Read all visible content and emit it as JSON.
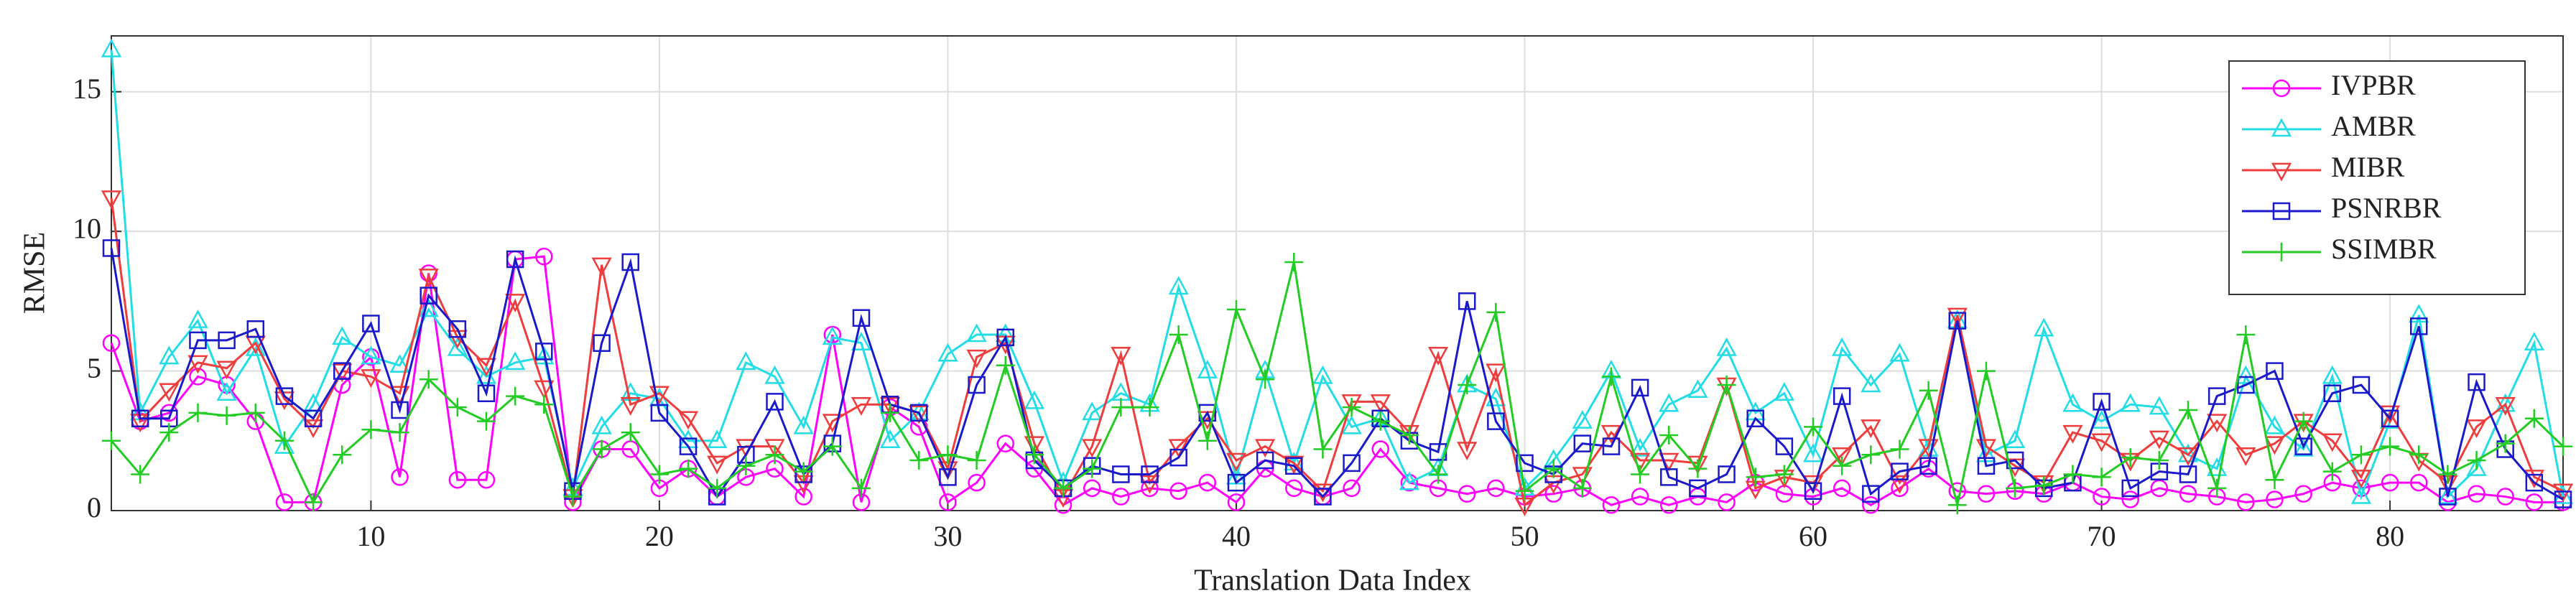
{
  "chart_data": {
    "type": "line",
    "x_label": "Translation Data Index",
    "y_label": "RMSE",
    "x": [
      1,
      2,
      3,
      4,
      5,
      6,
      7,
      8,
      9,
      10,
      11,
      12,
      13,
      14,
      15,
      16,
      17,
      18,
      19,
      20,
      21,
      22,
      23,
      24,
      25,
      26,
      27,
      28,
      29,
      30,
      31,
      32,
      33,
      34,
      35,
      36,
      37,
      38,
      39,
      40,
      41,
      42,
      43,
      44,
      45,
      46,
      47,
      48,
      49,
      50,
      51,
      52,
      53,
      54,
      55,
      56,
      57,
      58,
      59,
      60,
      61,
      62,
      63,
      64,
      65,
      66,
      67,
      68,
      69,
      70,
      71,
      72,
      73,
      74,
      75,
      76,
      77,
      78,
      79,
      80,
      81,
      82,
      83,
      84,
      85,
      86
    ],
    "xlim": [
      1,
      86
    ],
    "xticks": [
      10,
      20,
      30,
      40,
      50,
      60,
      70,
      80
    ],
    "ylim": [
      0,
      17
    ],
    "yticks": [
      0,
      5,
      10,
      15
    ],
    "grid": true,
    "legend": "upper right",
    "series": [
      {
        "name": "IVPBR",
        "color": "#ff00ff",
        "marker": "circle",
        "values": [
          6,
          3.2,
          3.5,
          4.8,
          4.5,
          3.2,
          0.3,
          0.3,
          4.5,
          5.5,
          1.2,
          8.5,
          1.1,
          1.1,
          9.0,
          9.1,
          0.3,
          2.2,
          2.2,
          0.8,
          1.5,
          0.5,
          1.2,
          1.5,
          0.5,
          6.3,
          0.3,
          3.7,
          3.0,
          0.3,
          1.0,
          2.4,
          1.5,
          0.2,
          0.8,
          0.5,
          0.8,
          0.7,
          1.0,
          0.3,
          1.5,
          0.8,
          0.5,
          0.8,
          2.2,
          1.0,
          0.8,
          0.6,
          0.8,
          0.5,
          0.6,
          0.8,
          0.2,
          0.5,
          0.2,
          0.5,
          0.3,
          1.0,
          0.6,
          0.5,
          0.8,
          0.2,
          0.8,
          1.5,
          0.7,
          0.6,
          0.7,
          0.6,
          1.0,
          0.5,
          0.4,
          0.8,
          0.6,
          0.5,
          0.3,
          0.4,
          0.6,
          1.0,
          0.8,
          1.0,
          1.0,
          0.3,
          0.6,
          0.5,
          0.3,
          0.3
        ]
      },
      {
        "name": "AMBR",
        "color": "#22dde6",
        "marker": "triangle-up",
        "values": [
          16.5,
          3.5,
          5.5,
          6.8,
          4.2,
          5.8,
          2.3,
          3.8,
          6.2,
          5.5,
          5.2,
          7.2,
          5.8,
          4.8,
          5.3,
          5.5,
          0.8,
          3.0,
          4.2,
          4.0,
          2.5,
          2.5,
          5.3,
          4.8,
          3.0,
          6.2,
          6.0,
          2.5,
          3.5,
          5.6,
          6.3,
          6.3,
          3.9,
          1.0,
          3.5,
          4.2,
          3.8,
          8.0,
          5.0,
          1.2,
          5.0,
          1.7,
          4.8,
          3.0,
          3.3,
          1.0,
          1.5,
          4.5,
          4.0,
          0.8,
          1.8,
          3.2,
          5.0,
          2.2,
          3.8,
          4.3,
          5.8,
          3.5,
          4.2,
          2.0,
          5.8,
          4.5,
          5.6,
          2.2,
          6.8,
          2.0,
          2.5,
          6.5,
          3.8,
          3.2,
          3.8,
          3.7,
          2.0,
          1.5,
          4.8,
          3.0,
          2.2,
          4.8,
          0.5,
          3.2,
          7.0,
          0.5,
          1.5,
          3.8,
          6.0,
          0.5
        ]
      },
      {
        "name": "MIBR",
        "color": "#f03c3c",
        "marker": "triangle-down",
        "values": [
          11.2,
          3.2,
          4.3,
          5.3,
          5.1,
          6.0,
          4.0,
          3.0,
          5.0,
          4.8,
          4.2,
          8.4,
          6.2,
          5.2,
          7.5,
          4.4,
          0.5,
          8.8,
          3.8,
          4.2,
          3.3,
          1.7,
          2.3,
          2.3,
          1.0,
          3.2,
          3.8,
          3.8,
          3.5,
          1.5,
          5.5,
          6.0,
          2.4,
          0.5,
          2.3,
          5.6,
          1.0,
          2.3,
          3.3,
          1.8,
          2.3,
          1.7,
          0.7,
          3.9,
          3.9,
          2.8,
          5.6,
          2.2,
          5.0,
          0.2,
          1.0,
          1.3,
          2.8,
          1.8,
          1.8,
          1.7,
          4.5,
          0.8,
          1.2,
          1.0,
          2.0,
          3.0,
          1.0,
          2.3,
          7.0,
          2.3,
          1.6,
          1.0,
          2.8,
          2.5,
          1.8,
          2.6,
          2.0,
          3.2,
          2.0,
          2.4,
          3.2,
          2.5,
          1.2,
          3.5,
          1.8,
          1.0,
          3.0,
          3.8,
          1.2,
          0.7
        ]
      },
      {
        "name": "PSNRBR",
        "color": "#1a1acc",
        "marker": "square",
        "values": [
          9.4,
          3.3,
          3.3,
          6.1,
          6.1,
          6.5,
          4.1,
          3.3,
          5.0,
          6.7,
          3.6,
          7.7,
          6.5,
          4.2,
          9.0,
          5.7,
          0.7,
          6.0,
          8.9,
          3.5,
          2.3,
          0.5,
          2.0,
          3.9,
          1.3,
          2.4,
          6.9,
          3.8,
          3.5,
          1.2,
          4.5,
          6.2,
          1.8,
          0.8,
          1.6,
          1.3,
          1.3,
          1.9,
          3.5,
          1.0,
          1.8,
          1.6,
          0.5,
          1.7,
          3.3,
          2.5,
          2.1,
          7.5,
          3.2,
          1.7,
          1.3,
          2.4,
          2.3,
          4.4,
          1.2,
          0.8,
          1.3,
          3.3,
          2.3,
          0.7,
          4.1,
          0.6,
          1.4,
          1.6,
          6.8,
          1.6,
          1.8,
          0.8,
          1.0,
          3.9,
          0.8,
          1.4,
          1.3,
          4.1,
          4.5,
          5.0,
          2.3,
          4.2,
          4.5,
          3.3,
          6.6,
          0.5,
          4.6,
          2.2,
          1.0,
          0.4
        ]
      },
      {
        "name": "SSIMBR",
        "color": "#22cc22",
        "marker": "plus",
        "values": [
          2.5,
          1.3,
          2.8,
          3.5,
          3.4,
          3.5,
          2.5,
          0.3,
          2.0,
          2.9,
          2.8,
          4.7,
          3.7,
          3.2,
          4.1,
          3.8,
          0.5,
          2.2,
          2.8,
          1.3,
          1.5,
          0.8,
          1.6,
          2.0,
          1.4,
          2.3,
          0.8,
          3.5,
          1.8,
          2.0,
          1.8,
          5.2,
          2.0,
          0.8,
          1.5,
          3.7,
          3.7,
          6.3,
          2.5,
          7.2,
          4.7,
          8.9,
          2.2,
          3.7,
          3.2,
          2.7,
          1.3,
          4.5,
          7.1,
          0.7,
          1.5,
          0.8,
          4.8,
          1.3,
          2.7,
          1.5,
          4.5,
          1.2,
          1.3,
          3.0,
          1.6,
          2.0,
          2.2,
          4.3,
          0.2,
          5.0,
          0.8,
          0.9,
          1.3,
          1.2,
          1.9,
          1.8,
          3.6,
          0.8,
          6.3,
          1.1,
          3.2,
          1.4,
          2.0,
          2.3,
          2.0,
          1.3,
          1.8,
          2.4,
          3.3,
          2.3
        ]
      }
    ]
  }
}
